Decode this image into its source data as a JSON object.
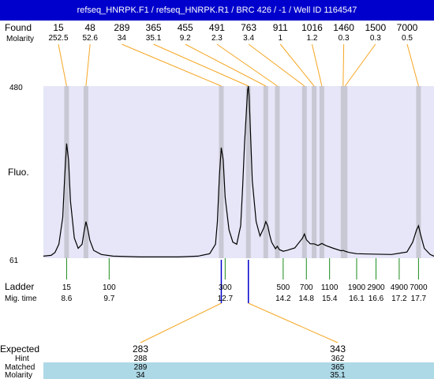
{
  "title": "refseq_HNRPK.F1 / refseq_HNRPK.R1 / BRC 426 / -1 / Well ID 1164547",
  "labels": {
    "found": "Found",
    "molarity": "Molarity",
    "fluo": "Fluo.",
    "ladder": "Ladder",
    "mig_time": "Mig. time",
    "expected": "Expected",
    "hint": "Hint",
    "matched": "Matched",
    "molarity_bottom": "Molarity"
  },
  "colors": {
    "title_bar": "#0000cc",
    "plot_bg": "#e6e6f8",
    "peak_band": "#c8c8d4",
    "leader_line": "#f5a623",
    "ladder_tick": "#1a8a1a",
    "marker": "#0000cc",
    "table_highlight": "#add8e6"
  },
  "chart_data": {
    "type": "line",
    "title": "refseq_HNRPK.F1 / refseq_HNRPK.R1 / BRC 426 / -1 / Well ID 1164547",
    "ylabel": "Fluo.",
    "ylim": [
      61,
      480
    ],
    "yticks": [
      "480",
      "61"
    ],
    "xlim": [
      8.0,
      18.1
    ],
    "found_peaks": [
      {
        "size": "15",
        "molarity": "252.5",
        "time": 8.6
      },
      {
        "size": "48",
        "molarity": "52.6",
        "time": 9.1
      },
      {
        "size": "289",
        "molarity": "34",
        "time": 12.6
      },
      {
        "size": "365",
        "molarity": "35.1",
        "time": 13.3
      },
      {
        "size": "455",
        "molarity": "9.2",
        "time": 13.75
      },
      {
        "size": "491",
        "molarity": "2.3",
        "time": 14.05
      },
      {
        "size": "763",
        "molarity": "3.4",
        "time": 14.75
      },
      {
        "size": "911",
        "molarity": "1",
        "time": 15.0
      },
      {
        "size": "1016",
        "molarity": "1.2",
        "time": 15.2
      },
      {
        "size": "1460",
        "molarity": "0.3",
        "time": 15.75
      },
      {
        "size": "1500",
        "molarity": "0.3",
        "time": 15.8
      },
      {
        "size": "7000",
        "molarity": "0.5",
        "time": 17.7
      }
    ],
    "ladder": [
      {
        "size": "15",
        "time": "8.6",
        "t": 8.6
      },
      {
        "size": "100",
        "time": "9.7",
        "t": 9.7
      },
      {
        "size": "300",
        "time": "12.7",
        "t": 12.7
      },
      {
        "size": "500",
        "time": "14.2",
        "t": 14.2
      },
      {
        "size": "700",
        "time": "14.8",
        "t": 14.8
      },
      {
        "size": "1100",
        "time": "15.4",
        "t": 15.4
      },
      {
        "size": "1900",
        "time": "16.1",
        "t": 16.1
      },
      {
        "size": "2900",
        "time": "16.6",
        "t": 16.6
      },
      {
        "size": "4900",
        "time": "17.2",
        "t": 17.2
      },
      {
        "size": "7000",
        "time": "17.7",
        "t": 17.7
      }
    ],
    "markers": [
      12.6,
      13.3
    ],
    "trace": {
      "x": [
        8.0,
        8.2,
        8.3,
        8.4,
        8.5,
        8.55,
        8.6,
        8.65,
        8.7,
        8.8,
        8.9,
        9.0,
        9.05,
        9.1,
        9.15,
        9.2,
        9.3,
        9.5,
        9.8,
        10.5,
        11.5,
        12.0,
        12.3,
        12.45,
        12.5,
        12.55,
        12.6,
        12.65,
        12.7,
        12.8,
        12.9,
        13.0,
        13.1,
        13.15,
        13.2,
        13.25,
        13.28,
        13.3,
        13.32,
        13.35,
        13.4,
        13.5,
        13.6,
        13.7,
        13.75,
        13.8,
        13.85,
        13.9,
        14.0,
        14.05,
        14.1,
        14.2,
        14.3,
        14.5,
        14.7,
        14.75,
        14.8,
        14.9,
        15.0,
        15.1,
        15.2,
        15.3,
        15.5,
        15.7,
        15.75,
        15.8,
        15.9,
        16.1,
        16.5,
        17.0,
        17.4,
        17.55,
        17.65,
        17.7,
        17.75,
        17.85,
        18.0,
        18.1
      ],
      "y": [
        66,
        68,
        75,
        95,
        160,
        260,
        340,
        300,
        200,
        110,
        85,
        95,
        125,
        150,
        130,
        105,
        80,
        70,
        66,
        64,
        64,
        66,
        72,
        95,
        150,
        260,
        330,
        300,
        210,
        130,
        100,
        95,
        140,
        230,
        340,
        420,
        470,
        480,
        455,
        380,
        250,
        150,
        115,
        135,
        150,
        140,
        118,
        100,
        84,
        90,
        82,
        78,
        80,
        86,
        110,
        120,
        106,
        96,
        96,
        92,
        97,
        92,
        85,
        79,
        80,
        78,
        75,
        72,
        71,
        70,
        76,
        100,
        130,
        140,
        120,
        85,
        70,
        66
      ]
    }
  },
  "expected_table": {
    "columns": [
      {
        "expected": "283",
        "hint": "288",
        "matched": "289",
        "molarity": "34"
      },
      {
        "expected": "343",
        "hint": "362",
        "matched": "365",
        "molarity": "35.1"
      }
    ]
  }
}
